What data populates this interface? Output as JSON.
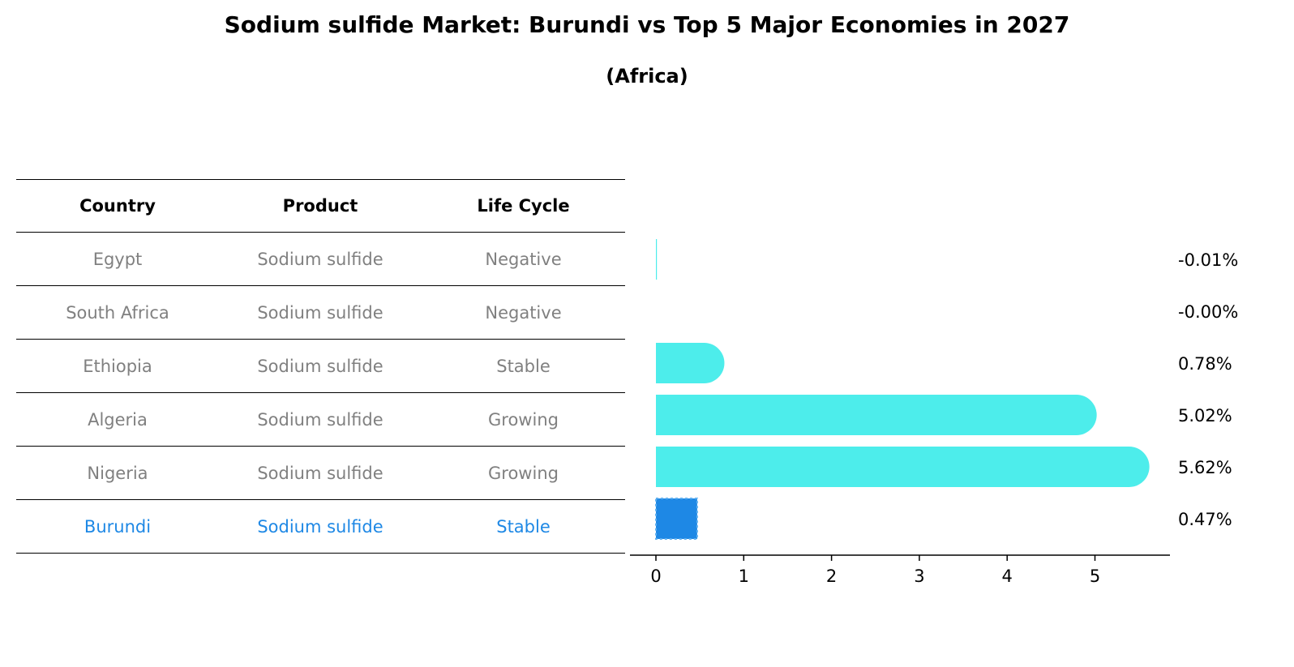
{
  "title": "Sodium sulfide Market: Burundi vs Top 5 Major Economies in 2027",
  "subtitle": "(Africa)",
  "table": {
    "headers": [
      "Country",
      "Product",
      "Life Cycle"
    ],
    "rows": [
      [
        "Egypt",
        "Sodium sulfide",
        "Negative"
      ],
      [
        "South Africa",
        "Sodium sulfide",
        "Negative"
      ],
      [
        "Ethiopia",
        "Sodium sulfide",
        "Stable"
      ],
      [
        "Algeria",
        "Sodium sulfide",
        "Growing"
      ],
      [
        "Nigeria",
        "Sodium sulfide",
        "Growing"
      ],
      [
        "Burundi",
        "Sodium sulfide",
        "Stable"
      ]
    ],
    "highlight_row": 5
  },
  "colors": {
    "bar": "#4dedeb",
    "highlight_bar": "#1e88e5",
    "muted_text": "#808080",
    "highlight_text": "#1e88e5"
  },
  "chart_data": {
    "type": "bar",
    "orientation": "horizontal",
    "categories": [
      "Egypt",
      "South Africa",
      "Ethiopia",
      "Algeria",
      "Nigeria",
      "Burundi"
    ],
    "values": [
      -0.01,
      -0.0,
      0.78,
      5.02,
      5.62,
      0.47
    ],
    "value_labels": [
      "-0.01%",
      "-0.00%",
      "0.78%",
      "5.02%",
      "5.62%",
      "0.47%"
    ],
    "xlim": [
      -0.3,
      5.9
    ],
    "xticks": [
      0,
      1,
      2,
      3,
      4,
      5
    ],
    "highlight": "Burundi",
    "grid": false
  }
}
